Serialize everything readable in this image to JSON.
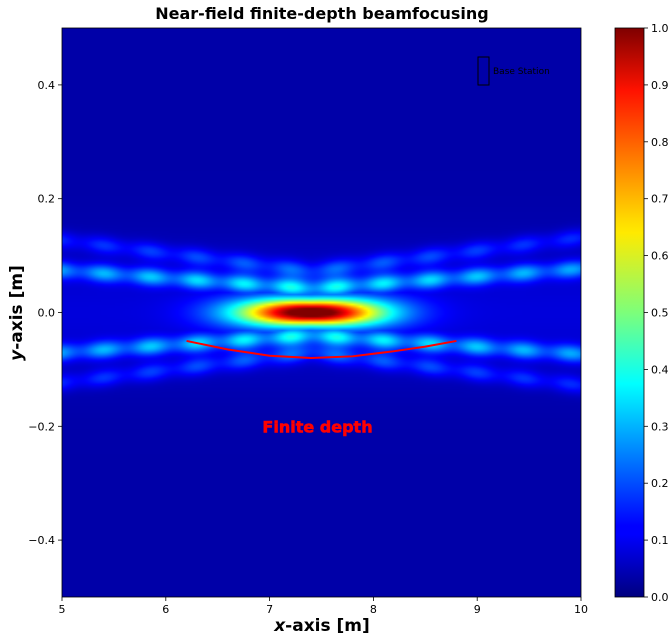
{
  "chart_data": {
    "type": "heatmap",
    "title": "Near-field finite-depth beamfocusing",
    "xlabel_var": "x",
    "xlabel_rest": "-axis [m]",
    "ylabel_var": "y",
    "ylabel_rest": "-axis [m]",
    "xlim": [
      5,
      10
    ],
    "ylim": [
      -0.5,
      0.5
    ],
    "xticks": [
      "5",
      "6",
      "7",
      "8",
      "9",
      "10"
    ],
    "yticks": [
      "0.4",
      "0.2",
      "0.0",
      "−0.2",
      "−0.4"
    ],
    "ytick_values": [
      0.4,
      0.2,
      0.0,
      -0.2,
      -0.4
    ],
    "colorbar": {
      "colormap": "jet",
      "range": [
        0.0,
        1.0
      ],
      "ticks": [
        "1.0",
        "0.9",
        "0.8",
        "0.7",
        "0.6",
        "0.5",
        "0.4",
        "0.3",
        "0.2",
        "0.1",
        "0.0"
      ],
      "tick_values": [
        1.0,
        0.9,
        0.8,
        0.7,
        0.6,
        0.5,
        0.4,
        0.3,
        0.2,
        0.1,
        0.0
      ]
    },
    "focal_point": {
      "x": 7.4,
      "y": 0.0,
      "value": 1.0
    },
    "curve": {
      "color": "#ff0000",
      "x": [
        6.2,
        6.6,
        7.0,
        7.4,
        7.8,
        8.2,
        8.5,
        8.8
      ],
      "y": [
        -0.05,
        -0.065,
        -0.076,
        -0.08,
        -0.077,
        -0.068,
        -0.06,
        -0.05
      ]
    },
    "annotation": {
      "text": "Finite depth",
      "x": 7.5,
      "y": -0.2,
      "color": "#ff0000"
    },
    "legend": {
      "label": "Base Station",
      "position": "top-right"
    }
  }
}
